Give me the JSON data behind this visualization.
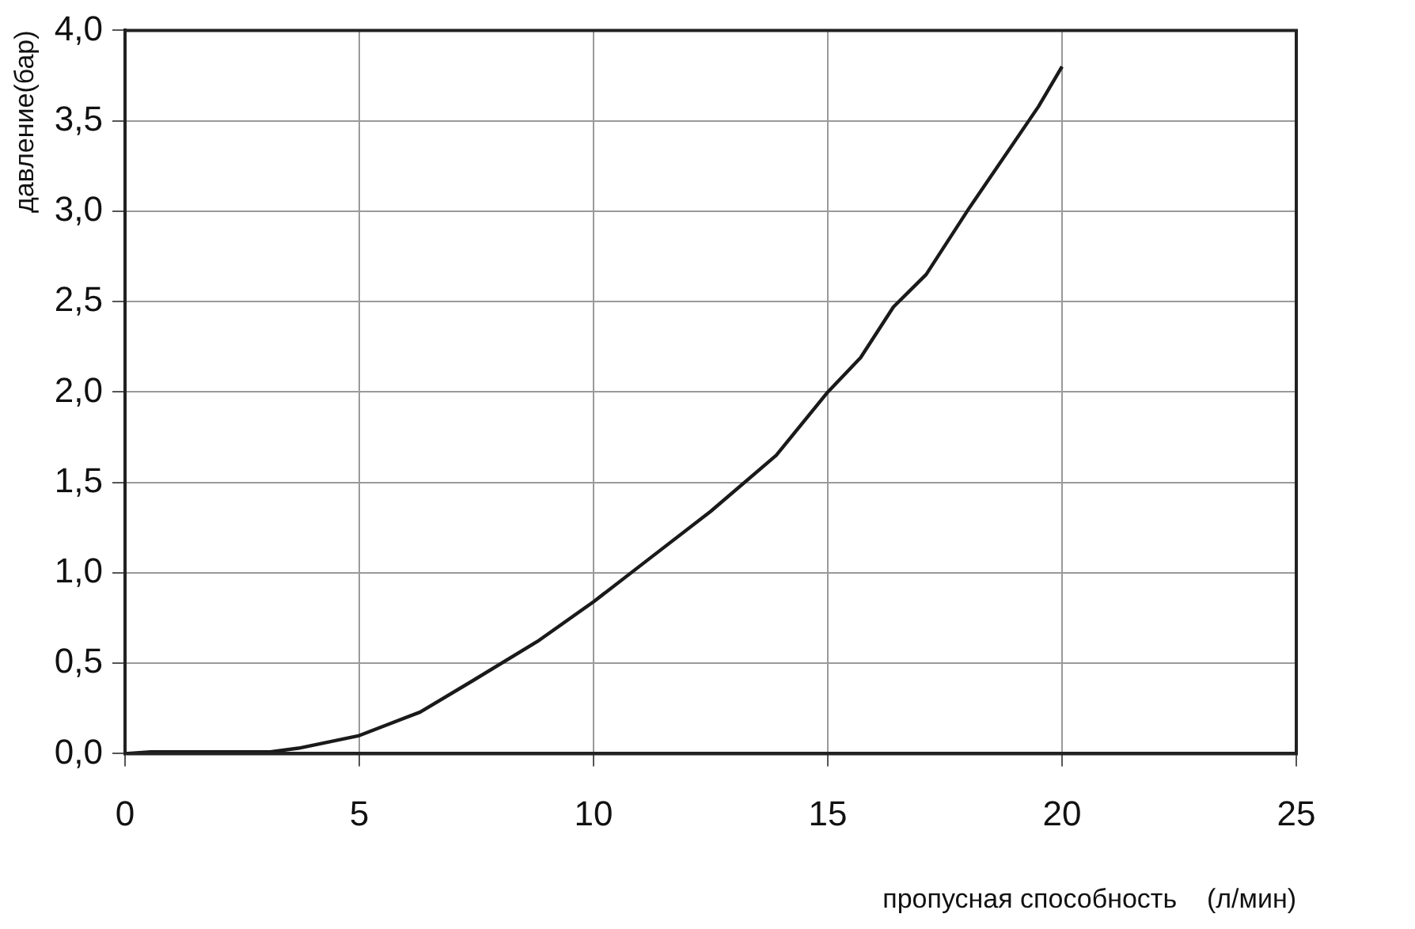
{
  "chart_data": {
    "type": "line",
    "xlabel": "пропусная способность    (л/мин)",
    "ylabel": "давление(бар)",
    "series": [
      {
        "color": "#1a1a1a",
        "x": [
          0,
          0.55,
          3.1,
          3.7,
          5,
          6.3,
          7.4,
          8.8,
          10,
          11.2,
          12.5,
          13.9,
          15,
          15.7,
          16.4,
          17.1,
          18,
          19.5,
          20
        ],
        "values": [
          0,
          0.01,
          0.01,
          0.03,
          0.1,
          0.23,
          0.4,
          0.62,
          0.84,
          1.08,
          1.34,
          1.65,
          2,
          2.19,
          2.47,
          2.65,
          3.01,
          3.58,
          3.8
        ]
      }
    ],
    "xlim": [
      0,
      25
    ],
    "xticks": [
      0,
      5,
      10,
      15,
      20,
      25
    ],
    "ylim": [
      0,
      4
    ],
    "yticks": [
      {
        "value": 0,
        "label": "0,0"
      },
      {
        "value": 0.5,
        "label": "0,5"
      },
      {
        "value": 1,
        "label": "1,0"
      },
      {
        "value": 1.5,
        "label": "1,5"
      },
      {
        "value": 2,
        "label": "2,0"
      },
      {
        "value": 2.5,
        "label": "2,5"
      },
      {
        "value": 3,
        "label": "3,0"
      },
      {
        "value": 3.5,
        "label": "3,5"
      },
      {
        "value": 4,
        "label": "4,0"
      }
    ],
    "grid": true,
    "legend": false,
    "marker": "none",
    "line_style": "solid"
  }
}
